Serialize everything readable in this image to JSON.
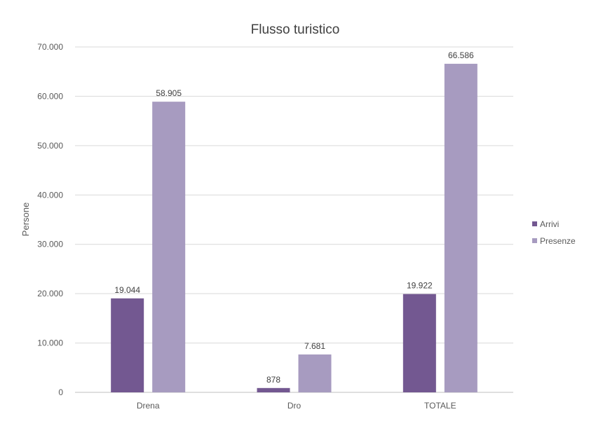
{
  "chart_data": {
    "type": "bar",
    "title": "Flusso turistico",
    "xlabel": "",
    "ylabel": "Persone",
    "categories": [
      "Drena",
      "Dro",
      "TOTALE"
    ],
    "series": [
      {
        "name": "Arrivi",
        "color": "#735891",
        "values": [
          19044,
          878,
          19922
        ],
        "labels": [
          "19.044",
          "878",
          "19.922"
        ]
      },
      {
        "name": "Presenze",
        "color": "#a79bc0",
        "values": [
          58905,
          7681,
          66586
        ],
        "labels": [
          "58.905",
          "7.681",
          "66.586"
        ]
      }
    ],
    "ylim": [
      0,
      70000
    ],
    "yticks": [
      0,
      10000,
      20000,
      30000,
      40000,
      50000,
      60000,
      70000
    ],
    "ytick_labels": [
      "0",
      "10.000",
      "20.000",
      "30.000",
      "40.000",
      "50.000",
      "60.000",
      "70.000"
    ],
    "grid": true,
    "legend": "right"
  }
}
